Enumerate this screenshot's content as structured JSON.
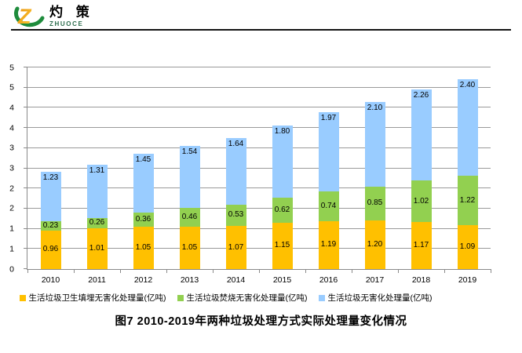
{
  "brand": {
    "name_cn": "灼 策",
    "name_en": "ZHUOCE",
    "mark_letter": "Z",
    "mark_orange": "#F39800",
    "mark_green": "#1E8C3C"
  },
  "chart_data": {
    "type": "bar",
    "stacked": true,
    "title": "图7  2010-2019年两种垃圾处理方式实际处理量变化情况",
    "categories": [
      "2010",
      "2011",
      "2012",
      "2013",
      "2014",
      "2015",
      "2016",
      "2017",
      "2018",
      "2019"
    ],
    "series": [
      {
        "name": "生活垃圾卫生填埋无害化处理量(亿吨)",
        "color": "#FFC000",
        "label_position": "center",
        "values": [
          0.96,
          1.01,
          1.05,
          1.05,
          1.07,
          1.15,
          1.19,
          1.2,
          1.17,
          1.09
        ]
      },
      {
        "name": "生活垃圾焚烧无害化处理量(亿吨)",
        "color": "#92D050",
        "label_position": "center",
        "values": [
          0.23,
          0.26,
          0.36,
          0.46,
          0.53,
          0.62,
          0.74,
          0.85,
          1.02,
          1.22
        ]
      },
      {
        "name": "生活垃圾无害化处理量(亿吨)",
        "color": "#99CCFF",
        "label_position": "inside-end",
        "values": [
          1.23,
          1.31,
          1.45,
          1.54,
          1.64,
          1.8,
          1.97,
          2.1,
          2.26,
          2.4
        ]
      }
    ],
    "ylim": [
      0,
      5
    ],
    "ytick_step": 0.5,
    "ytick_labels_bottom_to_top": [
      "0",
      "1",
      "1",
      "2",
      "2",
      "3",
      "3",
      "4",
      "4",
      "5",
      "5"
    ],
    "grid": true,
    "grid_color": "#9a9a9a",
    "legend_position": "bottom",
    "value_format": "0.00"
  }
}
